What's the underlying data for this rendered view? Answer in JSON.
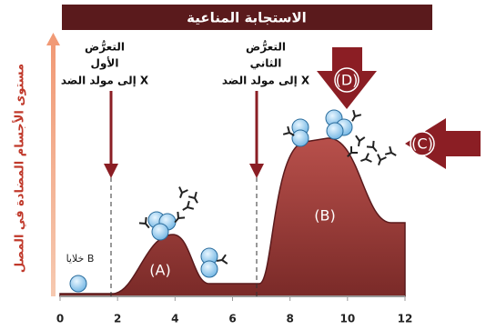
{
  "title": "الاستجابة المناعية",
  "y_axis_label": "مستوى الأجسام المضادة في المصل",
  "x_axis": {
    "ticks": [
      0,
      2,
      4,
      6,
      8,
      10,
      12
    ]
  },
  "annotations": {
    "first_exposure": [
      "التعرُّض",
      "الأول",
      "إلى مولد الضد X"
    ],
    "second_exposure": [
      "التعرُّض",
      "الثاني",
      "إلى مولد الضد X"
    ],
    "b_cells": "خلايا B"
  },
  "labels": {
    "A": "(A)",
    "B": "(B)",
    "C": "(C)",
    "D": "(D)"
  }
}
